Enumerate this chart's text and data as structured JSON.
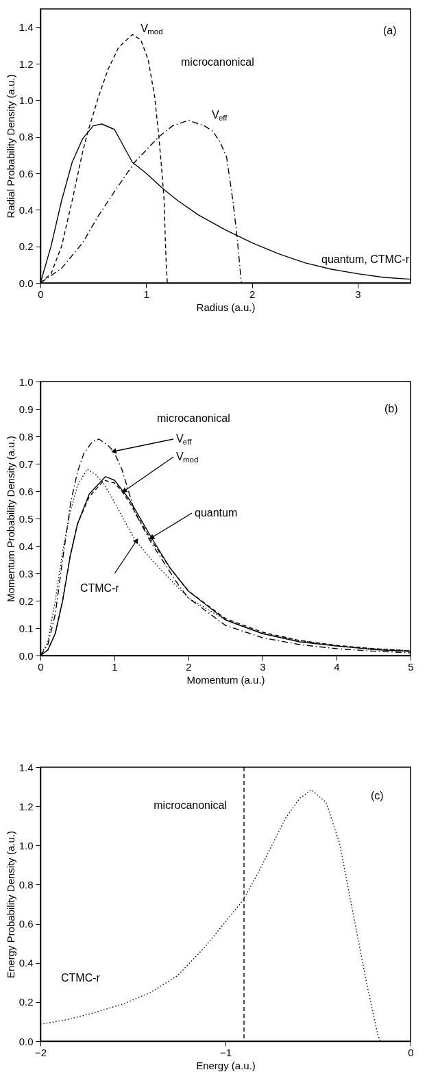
{
  "chart_data": [
    {
      "type": "line",
      "xlabel": "Radius (a.u.)",
      "ylabel": "Radial Probability Density (a.u.)",
      "xlim": [
        0,
        3.5
      ],
      "ylim": [
        0,
        1.5
      ],
      "xticks": [
        0,
        1,
        2,
        3
      ],
      "yticks": [
        {
          "value": 0,
          "label": "0.0"
        },
        {
          "value": 0.2,
          "label": "0.2"
        },
        {
          "value": 0.4,
          "label": "0.4"
        },
        {
          "value": 0.6,
          "label": "0.6"
        },
        {
          "value": 0.8,
          "label": "0.8"
        },
        {
          "value": 1.0,
          "label": "1.0"
        },
        {
          "value": 1.2,
          "label": "1.2"
        },
        {
          "value": 1.4,
          "label": "1.4"
        }
      ],
      "series": [
        {
          "color": "#000000",
          "line_style": "solid",
          "x": [
            0,
            0.1,
            0.2,
            0.3,
            0.4,
            0.5,
            0.58,
            0.7,
            0.87,
            1.0,
            1.17,
            1.3,
            1.5,
            1.75,
            2.0,
            2.25,
            2.5,
            2.75,
            3.0,
            3.25,
            3.5
          ],
          "values": [
            0,
            0.2,
            0.45,
            0.66,
            0.79,
            0.86,
            0.87,
            0.84,
            0.66,
            0.6,
            0.51,
            0.45,
            0.37,
            0.29,
            0.22,
            0.16,
            0.11,
            0.075,
            0.05,
            0.03,
            0.02
          ]
        },
        {
          "color": "#000000",
          "line_style": "dashed",
          "x": [
            0,
            0.1,
            0.2,
            0.3,
            0.4,
            0.45,
            0.55,
            0.64,
            0.74,
            0.87,
            0.95,
            1.02,
            1.08,
            1.12,
            1.15,
            1.17,
            1.18,
            1.19,
            1.2
          ],
          "values": [
            0,
            0.05,
            0.2,
            0.45,
            0.72,
            0.83,
            1.02,
            1.17,
            1.29,
            1.36,
            1.33,
            1.22,
            1.02,
            0.8,
            0.6,
            0.45,
            0.25,
            0.1,
            0
          ]
        },
        {
          "color": "#000000",
          "line_style": "dashdot",
          "x": [
            0,
            0.2,
            0.4,
            0.54,
            0.7,
            0.89,
            1.12,
            1.25,
            1.4,
            1.55,
            1.63,
            1.7,
            1.76,
            1.82,
            1.86,
            1.9
          ],
          "values": [
            0,
            0.08,
            0.22,
            0.36,
            0.5,
            0.66,
            0.8,
            0.86,
            0.89,
            0.86,
            0.83,
            0.77,
            0.69,
            0.45,
            0.25,
            0
          ]
        }
      ],
      "annotations": [
        {
          "text": "V$_{mod}$",
          "x": 0.87,
          "y": 1.36
        },
        "microcanonical",
        {
          "text": "V$_{eff}$",
          "x": 1.4,
          "y": 0.89
        },
        "(a)",
        "quantum, CTMC-r"
      ]
    },
    {
      "type": "line",
      "xlabel": "Momentum (a.u.)",
      "ylabel": "Momentum Probability Density (a.u.)",
      "xlim": [
        0,
        5
      ],
      "ylim": [
        0,
        1
      ],
      "xticks": [
        0,
        1,
        2,
        3,
        4,
        5
      ],
      "yticks": [
        {
          "value": 0,
          "label": "0.0"
        },
        0.1,
        0.2,
        0.3,
        0.4,
        0.5,
        0.6,
        0.7,
        0.8,
        0.9,
        {
          "value": 1.0,
          "label": "1.0"
        }
      ],
      "series": [
        {
          "color": "#000000",
          "line_style": "solid",
          "x": [
            0,
            0.1,
            0.2,
            0.3,
            0.4,
            0.5,
            0.66,
            0.88,
            1.0,
            1.2,
            1.5,
            1.75,
            2.0,
            2.5,
            3.0,
            3.5,
            4.0,
            4.5,
            5.0
          ],
          "values": [
            0,
            0.02,
            0.08,
            0.2,
            0.36,
            0.48,
            0.59,
            0.653,
            0.64,
            0.57,
            0.43,
            0.32,
            0.235,
            0.13,
            0.08,
            0.05,
            0.035,
            0.022,
            0.015
          ]
        },
        {
          "color": "#000000",
          "line_style": "dashed",
          "x": [
            0,
            0.1,
            0.2,
            0.3,
            0.4,
            0.5,
            0.66,
            0.86,
            1.0,
            1.1,
            1.2,
            1.5,
            1.75,
            2.0,
            2.5,
            3.0,
            3.5,
            4.0,
            4.5,
            5.0
          ],
          "values": [
            0,
            0.02,
            0.08,
            0.2,
            0.36,
            0.48,
            0.58,
            0.64,
            0.63,
            0.6,
            0.56,
            0.42,
            0.32,
            0.235,
            0.135,
            0.085,
            0.055,
            0.037,
            0.025,
            0.017
          ]
        },
        {
          "color": "#000000",
          "line_style": "dashdot",
          "x": [
            0,
            0.1,
            0.2,
            0.3,
            0.41,
            0.5,
            0.59,
            0.7,
            0.79,
            0.9,
            0.99,
            1.1,
            1.28,
            1.5,
            1.87,
            2.0,
            2.5,
            3.0,
            3.5,
            4.0,
            4.5,
            5.0
          ],
          "values": [
            0,
            0.04,
            0.15,
            0.35,
            0.56,
            0.67,
            0.74,
            0.78,
            0.79,
            0.77,
            0.745,
            0.68,
            0.52,
            0.41,
            0.255,
            0.21,
            0.11,
            0.065,
            0.04,
            0.025,
            0.016,
            0.01
          ]
        },
        {
          "color": "#000000",
          "line_style": "dotted",
          "x": [
            0,
            0.1,
            0.2,
            0.3,
            0.4,
            0.5,
            0.63,
            0.75,
            0.85,
            1.0,
            1.28,
            1.5,
            1.87,
            2.0,
            2.5,
            3.0,
            3.5,
            4.0,
            4.5,
            5.0
          ],
          "values": [
            0,
            0.05,
            0.2,
            0.38,
            0.52,
            0.62,
            0.68,
            0.66,
            0.63,
            0.56,
            0.42,
            0.35,
            0.245,
            0.21,
            0.13,
            0.08,
            0.055,
            0.035,
            0.025,
            0.018
          ]
        }
      ],
      "annotations": [
        "microcanonical",
        {
          "text": "V$_{eff}$",
          "x": 0.99,
          "y": 0.745
        },
        {
          "text": "V$_{mod}$",
          "x": 1.13,
          "y": 0.6
        },
        {
          "text": "quantum",
          "x": 1.5,
          "y": 0.43
        },
        {
          "text": "CTMC-r",
          "x": 1.3,
          "y": 0.42
        },
        "(b)"
      ]
    },
    {
      "type": "line",
      "xlabel": "Energy (a.u.)",
      "ylabel": "Energy Probability Density (a.u.)",
      "xlim": [
        -2,
        0
      ],
      "ylim": [
        0,
        1.4
      ],
      "xticks": [
        {
          "value": -2,
          "label": "−2"
        },
        {
          "value": -1,
          "label": "−1"
        },
        0
      ],
      "yticks": [
        {
          "value": 0,
          "label": "0.0"
        },
        {
          "value": 0.2,
          "label": "0.2"
        },
        {
          "value": 0.4,
          "label": "0.4"
        },
        {
          "value": 0.6,
          "label": "0.6"
        },
        {
          "value": 0.8,
          "label": "0.8"
        },
        {
          "value": 1.0,
          "label": "1.0"
        },
        {
          "value": 1.2,
          "label": "1.2"
        },
        {
          "value": 1.4,
          "label": "1.4"
        }
      ],
      "series": [
        {
          "color": "#000000",
          "line_style": "dotted",
          "x": [
            -2,
            -1.846,
            -1.7,
            -1.553,
            -1.407,
            -1.26,
            -1.114,
            -0.905,
            -0.821,
            -0.675,
            -0.6,
            -0.536,
            -0.456,
            -0.383,
            -0.31,
            -0.236,
            -0.177,
            -0.163
          ],
          "values": [
            0.086,
            0.112,
            0.148,
            0.19,
            0.248,
            0.334,
            0.478,
            0.72,
            0.865,
            1.14,
            1.24,
            1.284,
            1.22,
            1.01,
            0.65,
            0.29,
            0.033,
            0
          ]
        }
      ],
      "ref_lines": [
        {
          "axis": "x",
          "value": -0.9,
          "label": "microcanonical",
          "color": "#000000",
          "line_style": "dashed"
        }
      ],
      "annotations": [
        "CTMC-r",
        "(c)"
      ]
    }
  ]
}
